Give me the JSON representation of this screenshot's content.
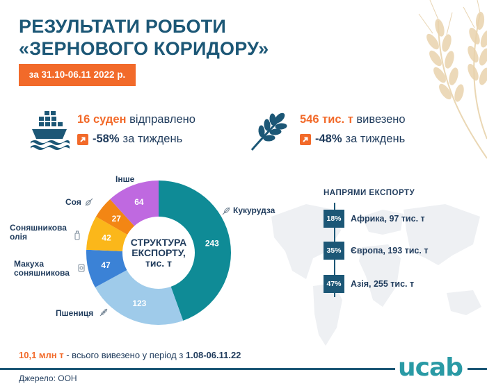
{
  "title": {
    "line1": "РЕЗУЛЬТАТИ РОБОТИ",
    "line2": "«ЗЕРНОВОГО КОРИДОРУ»"
  },
  "date_badge": "за 31.10-06.11 2022 р.",
  "ships": {
    "value": "16",
    "unit": "суден",
    "verb": "відправлено",
    "change": "-58%",
    "change_suffix": "за тиждень"
  },
  "tonnage": {
    "value": "546",
    "unit": "тис. т",
    "verb": "вивезено",
    "change": "-48%",
    "change_suffix": "за тиждень"
  },
  "colors": {
    "accent": "#f26a2a",
    "title": "#1c5776",
    "text": "#1f3b5c",
    "logo": "#2a9aa5"
  },
  "chart_data": {
    "type": "pie",
    "title": "СТРУКТУРА ЕКСПОРТУ, тис. т",
    "center_label_line1": "СТРУКТУРА",
    "center_label_line2": "ЕКСПОРТУ,",
    "center_label_line3": "тис. т",
    "categories": [
      "Кукурудза",
      "Пшениця",
      "Макуха соняшникова",
      "Соняшникова олія",
      "Соя",
      "Інше"
    ],
    "values": [
      243,
      123,
      47,
      42,
      27,
      64
    ],
    "colors": [
      "#0f8b96",
      "#9fcbea",
      "#3b82d6",
      "#fbb71a",
      "#f38614",
      "#bf69e0"
    ],
    "label_colors": [
      "#ffffff",
      "#ffffff",
      "#ffffff",
      "#ffffff",
      "#ffffff",
      "#ffffff"
    ]
  },
  "labels": {
    "corn": "Кукурудза",
    "wheat": "Пшениця",
    "meal_line1": "Макуха",
    "meal_line2": "соняшникова",
    "oil_line1": "Соняшникова",
    "oil_line2": "олія",
    "soy": "Соя",
    "other": "Інше"
  },
  "directions": {
    "title": "НАПРЯМИ ЕКСПОРТУ",
    "items": [
      {
        "pct": "18%",
        "label": "Африка, 97 тис. т"
      },
      {
        "pct": "35%",
        "label": "Європа, 193 тис. т"
      },
      {
        "pct": "47%",
        "label": "Азія, 255 тис. т"
      }
    ]
  },
  "total": {
    "value": "10,1 млн т",
    "text": " - всього вивезено у період з ",
    "period": "1.08-06.11.22"
  },
  "source": "Джерело: ООН",
  "logo": "ucab",
  "icons": [
    "ship-icon",
    "wheat-ear-icon",
    "arrow-up-right-icon",
    "corn-icon",
    "wheat-icon",
    "sunflower-meal-icon",
    "oil-bottle-icon",
    "soy-icon",
    "world-map"
  ]
}
